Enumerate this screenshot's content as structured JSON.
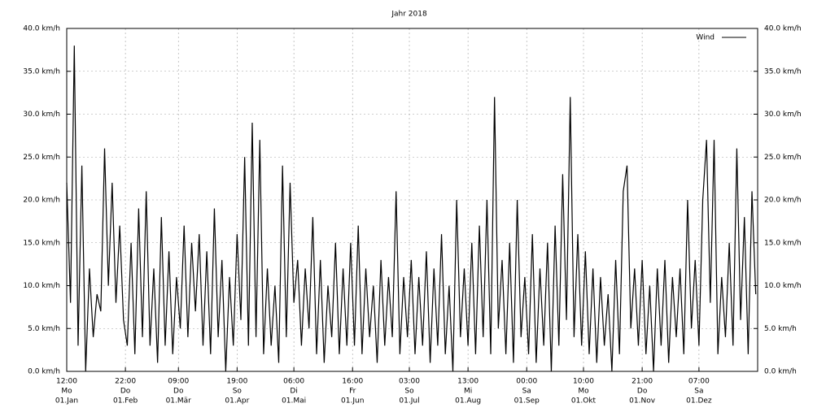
{
  "chart_data": {
    "type": "line",
    "title": "Jahr 2018",
    "x": [
      0,
      2,
      4,
      6,
      8,
      10,
      12,
      14,
      16,
      18,
      20,
      22,
      24,
      26,
      28,
      30,
      32,
      34,
      36,
      38,
      40,
      42,
      44,
      46,
      48,
      50,
      52,
      54,
      56,
      58,
      60,
      62,
      64,
      66,
      68,
      70,
      72,
      74,
      76,
      78,
      80,
      82,
      84,
      86,
      88,
      90,
      92,
      94,
      96,
      98,
      100,
      102,
      104,
      106,
      108,
      110,
      112,
      114,
      116,
      118,
      120,
      122,
      124,
      126,
      128,
      130,
      132,
      134,
      136,
      138,
      140,
      142,
      144,
      146,
      148,
      150,
      152,
      154,
      156,
      158,
      160,
      162,
      164,
      166,
      168,
      170,
      172,
      174,
      176,
      178,
      180,
      182,
      184,
      186,
      188,
      190,
      192,
      194,
      196,
      198,
      200,
      202,
      204,
      206,
      208,
      210,
      212,
      214,
      216,
      218,
      220,
      222,
      224,
      226,
      228,
      230,
      232,
      234,
      236,
      238,
      240,
      242,
      244,
      246,
      248,
      250,
      252,
      254,
      256,
      258,
      260,
      262,
      264,
      266,
      268,
      270,
      272,
      274,
      276,
      278,
      280,
      282,
      284,
      286,
      288,
      290,
      292,
      294,
      296,
      298,
      300,
      302,
      304,
      306,
      308,
      310,
      312,
      314,
      316,
      318,
      320,
      322,
      324,
      326,
      328,
      330,
      332,
      334,
      336,
      338,
      340,
      342,
      344,
      346,
      348,
      350,
      352,
      354,
      356,
      358,
      360,
      362,
      364
    ],
    "series": [
      {
        "name": "Wind",
        "color": "#000000",
        "values": [
          22,
          8,
          38,
          3,
          24,
          0,
          12,
          4,
          9,
          7,
          26,
          10,
          22,
          8,
          17,
          6,
          3,
          15,
          2,
          19,
          4,
          21,
          3,
          12,
          1,
          18,
          3,
          14,
          2,
          11,
          5,
          17,
          4,
          15,
          7,
          16,
          3,
          14,
          2,
          19,
          4,
          13,
          0,
          11,
          3,
          16,
          6,
          25,
          3,
          29,
          4,
          27,
          2,
          12,
          3,
          10,
          1,
          24,
          4,
          22,
          8,
          13,
          3,
          12,
          5,
          18,
          2,
          13,
          1,
          10,
          4,
          15,
          2,
          12,
          3,
          15,
          3,
          17,
          2,
          12,
          4,
          10,
          1,
          13,
          3,
          11,
          4,
          21,
          2,
          11,
          4,
          13,
          2,
          11,
          3,
          14,
          1,
          12,
          3,
          16,
          2,
          10,
          0,
          20,
          4,
          12,
          3,
          15,
          2,
          17,
          4,
          20,
          2,
          32,
          5,
          13,
          2,
          15,
          1,
          20,
          4,
          11,
          2,
          16,
          1,
          12,
          3,
          15,
          0,
          17,
          3,
          23,
          6,
          32,
          4,
          16,
          3,
          14,
          2,
          12,
          1,
          11,
          3,
          9,
          0,
          13,
          2,
          21,
          24,
          5,
          12,
          3,
          13,
          2,
          10,
          0,
          12,
          3,
          13,
          1,
          11,
          4,
          12,
          2,
          20,
          5,
          13,
          3,
          20,
          27,
          8,
          27,
          2,
          11,
          4,
          15,
          3,
          26,
          6,
          18,
          2,
          21,
          9
        ]
      }
    ],
    "xlim": [
      0,
      365
    ],
    "xticks": [
      {
        "value": 0,
        "label": [
          "12:00",
          "Mo",
          "01.Jan"
        ]
      },
      {
        "value": 31,
        "label": [
          "22:00",
          "Do",
          "01.Feb"
        ]
      },
      {
        "value": 59,
        "label": [
          "09:00",
          "Do",
          "01.Mär"
        ]
      },
      {
        "value": 90,
        "label": [
          "19:00",
          "So",
          "01.Apr"
        ]
      },
      {
        "value": 120,
        "label": [
          "06:00",
          "Di",
          "01.Mai"
        ]
      },
      {
        "value": 151,
        "label": [
          "16:00",
          "Fr",
          "01.Jun"
        ]
      },
      {
        "value": 181,
        "label": [
          "03:00",
          "So",
          "01.Jul"
        ]
      },
      {
        "value": 212,
        "label": [
          "13:00",
          "Mi",
          "01.Aug"
        ]
      },
      {
        "value": 243,
        "label": [
          "00:00",
          "Sa",
          "01.Sep"
        ]
      },
      {
        "value": 273,
        "label": [
          "10:00",
          "Mo",
          "01.Okt"
        ]
      },
      {
        "value": 304,
        "label": [
          "21:00",
          "Do",
          "01.Nov"
        ]
      },
      {
        "value": 334,
        "label": [
          "07:00",
          "Sa",
          "01.Dez"
        ]
      }
    ],
    "ylim": [
      0,
      40
    ],
    "yticks": [
      {
        "value": 0,
        "label": "0.0 km/h"
      },
      {
        "value": 5,
        "label": "5.0 km/h"
      },
      {
        "value": 10,
        "label": "10.0 km/h"
      },
      {
        "value": 15,
        "label": "15.0 km/h"
      },
      {
        "value": 20,
        "label": "20.0 km/h"
      },
      {
        "value": 25,
        "label": "25.0 km/h"
      },
      {
        "value": 30,
        "label": "30.0 km/h"
      },
      {
        "value": 35,
        "label": "35.0 km/h"
      },
      {
        "value": 40,
        "label": "40.0 km/h"
      }
    ],
    "grid": true,
    "legend": "top-right"
  }
}
